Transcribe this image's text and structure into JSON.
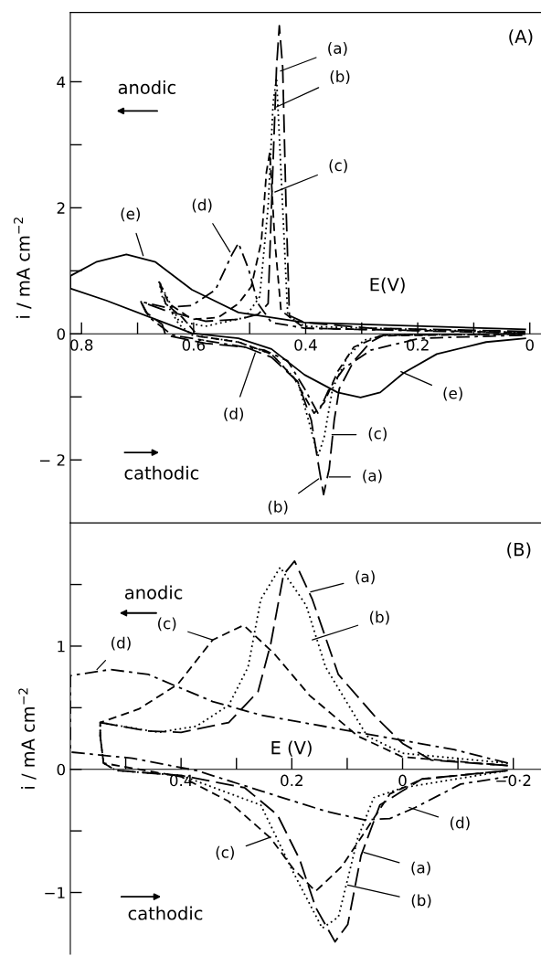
{
  "chart_data": [
    {
      "type": "line",
      "ylabel": "i / mA cm$^{−2}$",
      "xlim": [
        0.82,
        -0.02
      ],
      "ylim": [
        -3.0,
        5.1
      ],
      "xticks": [
        0.8,
        {
          "value": 0.7,
          "label": null
        },
        0.6,
        {
          "value": 0.5,
          "label": null
        },
        0.4,
        {
          "value": 0.3,
          "label": null
        },
        0.2,
        {
          "value": 0.1,
          "label": null
        },
        0
      ],
      "yticks": [
        {
          "value": -2,
          "label": "− 2"
        },
        {
          "value": -1,
          "label": null
        },
        0,
        {
          "value": 1,
          "label": null
        },
        2,
        {
          "value": 3,
          "label": null
        },
        4
      ],
      "grid": false,
      "legend": false,
      "annotations": [
        "(A)",
        "anodic",
        "cathodic",
        "E(V)",
        {
          "text": "(a)",
          "x": 0.445,
          "y": 4.17
        },
        {
          "text": "(b)",
          "x": 0.452,
          "y": 3.6
        },
        {
          "text": "(c)",
          "x": 0.455,
          "y": 2.25
        },
        {
          "text": "(e)",
          "x": 0.69,
          "y": 1.24
        },
        {
          "text": "(d)",
          "x": 0.535,
          "y": 1.3
        },
        {
          "text": "(d)",
          "x": 0.49,
          "y": -0.3
        },
        {
          "text": "(e)",
          "x": 0.23,
          "y": -0.6
        },
        {
          "text": "(c)",
          "x": 0.353,
          "y": -1.6
        },
        {
          "text": "(a)",
          "x": 0.358,
          "y": -2.27
        },
        {
          "text": "(b)",
          "x": 0.377,
          "y": -2.3
        }
      ],
      "series": [
        {
          "color": "#000000",
          "line_style": "longdash",
          "x": [
            0.008,
            0.284,
            0.402,
            0.429,
            0.435,
            0.441,
            0.447,
            0.452,
            0.461,
            0.467,
            0.485,
            0.52,
            0.579,
            0.65,
            0.694,
            0.685,
            0.656,
            0.65,
            0.579,
            0.508,
            0.461,
            0.414,
            0.39,
            0.376,
            0.368,
            0.358,
            0.349,
            0.34,
            0.314,
            0.284,
            0.261,
            0.008
          ],
          "values": [
            0.04,
            0.09,
            0.18,
            0.29,
            2.02,
            4.23,
            4.89,
            4.23,
            2.02,
            0.48,
            0.31,
            0.23,
            0.2,
            0.37,
            0.51,
            0.34,
            0.15,
            -0.02,
            -0.15,
            -0.21,
            -0.37,
            -0.76,
            -1.37,
            -2.14,
            -2.55,
            -2.14,
            -1.37,
            -0.87,
            -0.43,
            -0.13,
            -0.02,
            0
          ]
        },
        {
          "color": "#000000",
          "line_style": "dotted",
          "x": [
            0.008,
            0.402,
            0.432,
            0.444,
            0.452,
            0.458,
            0.467,
            0.482,
            0.508,
            0.579,
            0.626,
            0.662,
            0.656,
            0.626,
            0.603,
            0.52,
            0.461,
            0.414,
            0.39,
            0.378,
            0.367,
            0.352,
            0.326,
            0.296,
            0.255,
            0.008
          ],
          "values": [
            0.02,
            0.12,
            0.29,
            2.57,
            4.06,
            3.67,
            2.02,
            0.59,
            0.26,
            0.12,
            0.2,
            0.84,
            0.59,
            0.15,
            -0.02,
            -0.13,
            -0.32,
            -0.76,
            -1.53,
            -1.94,
            -1.64,
            -0.87,
            -0.37,
            -0.1,
            -0.02,
            0
          ]
        },
        {
          "color": "#000000",
          "line_style": "dashed",
          "x": [
            0.008,
            0.402,
            0.444,
            0.455,
            0.464,
            0.47,
            0.479,
            0.497,
            0.52,
            0.556,
            0.603,
            0.644,
            0.662,
            0.65,
            0.62,
            0.591,
            0.52,
            0.461,
            0.42,
            0.385,
            0.367,
            0.343,
            0.314,
            0.267,
            0.008
          ],
          "values": [
            0.02,
            0.09,
            0.37,
            1.47,
            2.88,
            2.57,
            1.47,
            0.75,
            0.48,
            0.26,
            0.23,
            0.48,
            0.84,
            0.48,
            0.26,
            -0.04,
            -0.13,
            -0.32,
            -0.71,
            -1.26,
            -1.09,
            -0.6,
            -0.21,
            -0.03,
            0
          ]
        },
        {
          "color": "#000000",
          "line_style": "dashdot",
          "x": [
            0.008,
            0.402,
            0.461,
            0.485,
            0.502,
            0.52,
            0.532,
            0.561,
            0.603,
            0.65,
            0.694,
            0.679,
            0.638,
            0.55,
            0.473,
            0.432,
            0.402,
            0.378,
            0.358,
            0.331,
            0.284,
            0.196,
            0.008
          ],
          "values": [
            0.01,
            0.09,
            0.18,
            0.48,
            1.03,
            1.44,
            1.25,
            0.7,
            0.45,
            0.42,
            0.51,
            0.26,
            -0.02,
            -0.15,
            -0.26,
            -0.43,
            -0.87,
            -1.26,
            -0.87,
            -0.54,
            -0.26,
            -0.07,
            -0.02
          ]
        },
        {
          "color": "#000000",
          "line_style": "solid",
          "x": [
            0.008,
            0.402,
            0.52,
            0.603,
            0.668,
            0.72,
            0.774,
            0.82,
            0.82,
            0.756,
            0.668,
            0.603,
            0.52,
            0.461,
            0.402,
            0.343,
            0.302,
            0.267,
            0.225,
            0.166,
            0.078,
            0.008
          ],
          "values": [
            0.07,
            0.18,
            0.34,
            0.7,
            1.14,
            1.26,
            1.14,
            0.92,
            0.72,
            0.53,
            0.23,
            0.01,
            -0.07,
            -0.24,
            -0.65,
            -0.93,
            -1.01,
            -0.93,
            -0.62,
            -0.32,
            -0.13,
            -0.07
          ]
        }
      ]
    },
    {
      "type": "line",
      "ylabel": "i / mA cm$^{−2}$",
      "xlim": [
        0.6,
        -0.25
      ],
      "ylim": [
        -1.5,
        2.0
      ],
      "xticks": [
        {
          "value": 0.5,
          "label": null
        },
        0.4,
        {
          "value": 0.3,
          "label": null
        },
        0.2,
        {
          "value": 0.1,
          "label": null
        },
        0,
        {
          "value": -0.1,
          "label": null
        },
        {
          "value": -0.2,
          "label": "−0·2"
        }
      ],
      "yticks": [
        {
          "value": -1,
          "label": "−1"
        },
        {
          "value": -0.5,
          "label": null
        },
        0,
        {
          "value": 0.5,
          "label": null
        },
        1,
        {
          "value": 1.5,
          "label": null
        }
      ],
      "grid": false,
      "legend": false,
      "annotations": [
        "(B)",
        "anodic",
        "cathodic",
        "E (V)",
        {
          "text": "(a)",
          "x": 0.166,
          "y": 1.44
        },
        {
          "text": "(b)",
          "x": 0.163,
          "y": 1.05
        },
        {
          "text": "(c)",
          "x": 0.343,
          "y": 1.05
        },
        {
          "text": "(d)",
          "x": 0.552,
          "y": 0.81
        },
        {
          "text": "(d)",
          "x": -0.012,
          "y": -0.31
        },
        {
          "text": "(c)",
          "x": 0.238,
          "y": -0.55
        },
        {
          "text": "(a)",
          "x": 0.07,
          "y": -0.675
        },
        {
          "text": "(b)",
          "x": 0.099,
          "y": -0.94
        }
      ],
      "series": [
        {
          "color": "#000000",
          "line_style": "longdash",
          "x": [
            -0.19,
            -0.052,
            0,
            0.052,
            0.116,
            0.163,
            0.195,
            0.215,
            0.238,
            0.261,
            0.314,
            0.4,
            0.46,
            0.546,
            0.546,
            0.54,
            0.517,
            0.4,
            0.285,
            0.226,
            0.186,
            0.157,
            0.122,
            0.099,
            0.075,
            0.041,
            0,
            -0.035,
            -0.19
          ],
          "values": [
            0.03,
            0.075,
            0.21,
            0.44,
            0.77,
            1.38,
            1.69,
            1.58,
            1.02,
            0.63,
            0.38,
            0.3,
            0.31,
            0.38,
            0.27,
            0.05,
            -0.01,
            -0.05,
            -0.15,
            -0.37,
            -0.73,
            -1.12,
            -1.4,
            -1.26,
            -0.7,
            -0.29,
            -0.175,
            -0.078,
            -0.01
          ]
        },
        {
          "color": "#000000",
          "line_style": "dotted",
          "x": [
            -0.19,
            0,
            0.064,
            0.139,
            0.174,
            0.221,
            0.256,
            0.279,
            0.314,
            0.372,
            0.441,
            0.546,
            0.546,
            0.54,
            0.517,
            0.4,
            0.256,
            0.197,
            0.145,
            0.116,
            0.081,
            0.052,
            0,
            -0.19
          ],
          "values": [
            0.05,
            0.13,
            0.27,
            0.83,
            1.33,
            1.64,
            1.38,
            0.83,
            0.52,
            0.35,
            0.3,
            0.38,
            0.27,
            0.05,
            -0.01,
            -0.05,
            -0.29,
            -0.84,
            -1.29,
            -1.2,
            -0.56,
            -0.23,
            -0.15,
            -0.01
          ]
        },
        {
          "color": "#000000",
          "line_style": "dashed",
          "x": [
            -0.19,
            0,
            0.081,
            0.168,
            0.232,
            0.287,
            0.343,
            0.406,
            0.476,
            0.546,
            0.546,
            0.54,
            0.4,
            0.314,
            0.238,
            0.197,
            0.157,
            0.11,
            0.064,
            0.023,
            -0.035,
            -0.19
          ],
          "values": [
            0.03,
            0.1,
            0.27,
            0.6,
            0.94,
            1.17,
            1.05,
            0.69,
            0.49,
            0.38,
            0.27,
            0.05,
            -0.06,
            -0.26,
            -0.56,
            -0.81,
            -0.99,
            -0.79,
            -0.48,
            -0.2,
            -0.08,
            -0.01
          ]
        },
        {
          "color": "#000000",
          "line_style": "dashdot",
          "x": [
            -0.19,
            -0.093,
            0.081,
            0.256,
            0.343,
            0.459,
            0.528,
            0.6,
            0.6,
            0.488,
            0.372,
            0.256,
            0.139,
            0.07,
            0.023,
            -0.023,
            -0.105,
            -0.19
          ],
          "values": [
            0.05,
            0.16,
            0.3,
            0.44,
            0.55,
            0.77,
            0.81,
            0.76,
            0.14,
            0.09,
            -0.01,
            -0.175,
            -0.34,
            -0.41,
            -0.4,
            -0.31,
            -0.12,
            -0.06
          ]
        }
      ]
    }
  ]
}
